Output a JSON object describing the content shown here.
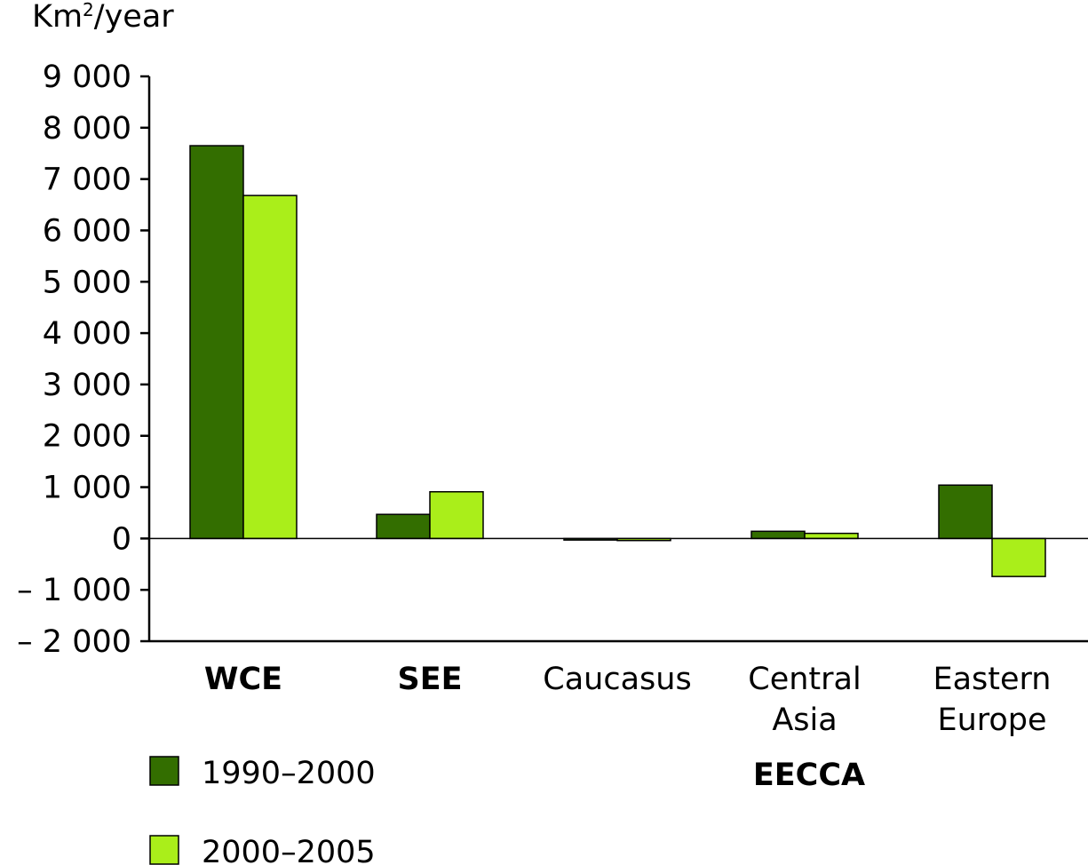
{
  "chart_data": {
    "type": "bar",
    "unit_label": {
      "base": "Km",
      "superscript": "2",
      "suffix": "/year"
    },
    "ylim": [
      -2000,
      9000
    ],
    "yticks": [
      {
        "value": 9000,
        "label": "9 000"
      },
      {
        "value": 8000,
        "label": "8 000"
      },
      {
        "value": 7000,
        "label": "7 000"
      },
      {
        "value": 6000,
        "label": "6 000"
      },
      {
        "value": 5000,
        "label": "5 000"
      },
      {
        "value": 4000,
        "label": "4 000"
      },
      {
        "value": 3000,
        "label": "3 000"
      },
      {
        "value": 2000,
        "label": "2 000"
      },
      {
        "value": 1000,
        "label": "1 000"
      },
      {
        "value": 0,
        "label": "0"
      },
      {
        "value": -1000,
        "label": "– 1 000"
      },
      {
        "value": -2000,
        "label": "– 2 000"
      }
    ],
    "categories": [
      {
        "lines": [
          "WCE"
        ],
        "bold": true
      },
      {
        "lines": [
          "SEE"
        ],
        "bold": true
      },
      {
        "lines": [
          "Caucasus"
        ],
        "bold": false
      },
      {
        "lines": [
          "Central",
          "Asia"
        ],
        "bold": false
      },
      {
        "lines": [
          "Eastern",
          "Europe"
        ],
        "bold": false
      }
    ],
    "series": [
      {
        "name": "1990–2000",
        "color": "#336e00",
        "values": [
          7650,
          470,
          -30,
          140,
          1040
        ]
      },
      {
        "name": "2000–2005",
        "color": "#aaee1a",
        "values": [
          6680,
          910,
          -40,
          100,
          -740
        ]
      }
    ],
    "group_label": "EECCA",
    "legend_position": "bottom-left",
    "grid": false
  }
}
